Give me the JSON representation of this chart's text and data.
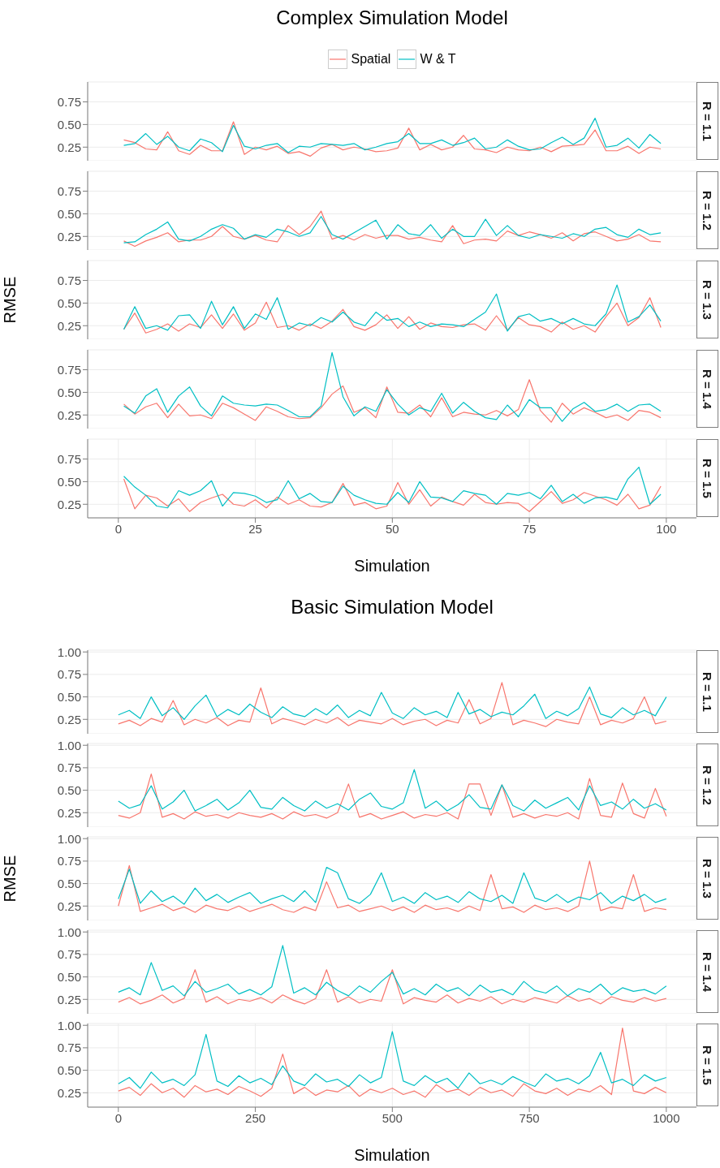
{
  "chart_data": [
    {
      "type": "line",
      "title": "Complex Simulation Model",
      "legend": "top",
      "annotations": [
        "R = 1.1"
      ],
      "grid": true,
      "tick_labels": "y",
      "x": [
        1,
        3,
        5,
        7,
        9,
        11,
        13,
        15,
        17,
        19,
        21,
        23,
        25,
        27,
        29,
        31,
        33,
        35,
        37,
        39,
        41,
        43,
        45,
        47,
        49,
        51,
        53,
        55,
        57,
        59,
        61,
        63,
        65,
        67,
        69,
        71,
        73,
        75,
        77,
        79,
        81,
        83,
        85,
        87,
        89,
        91,
        93,
        95,
        97,
        99
      ],
      "xlim": [
        -5.6,
        105.5
      ],
      "xticks": [
        0,
        25,
        50,
        75,
        100
      ],
      "ylim": [
        0.1,
        0.97
      ],
      "yticks": [
        {
          "value": 0.25,
          "label": "0.25"
        },
        {
          "value": 0.5,
          "label": "0.50"
        },
        {
          "value": 0.75,
          "label": "0.75"
        }
      ],
      "series": [
        {
          "name": "Spatial",
          "color": "#f8766d",
          "values": [
            0.33,
            0.3,
            0.23,
            0.22,
            0.42,
            0.21,
            0.17,
            0.27,
            0.21,
            0.21,
            0.53,
            0.17,
            0.25,
            0.22,
            0.26,
            0.18,
            0.2,
            0.15,
            0.24,
            0.28,
            0.22,
            0.25,
            0.23,
            0.2,
            0.21,
            0.24,
            0.46,
            0.22,
            0.28,
            0.22,
            0.25,
            0.38,
            0.23,
            0.22,
            0.19,
            0.25,
            0.22,
            0.21,
            0.25,
            0.2,
            0.26,
            0.27,
            0.28,
            0.44,
            0.21,
            0.21,
            0.26,
            0.18,
            0.25,
            0.23
          ]
        },
        {
          "name": "W & T",
          "color": "#00bfc4",
          "values": [
            0.27,
            0.29,
            0.4,
            0.28,
            0.37,
            0.25,
            0.21,
            0.34,
            0.3,
            0.2,
            0.49,
            0.26,
            0.23,
            0.27,
            0.29,
            0.19,
            0.26,
            0.25,
            0.29,
            0.28,
            0.27,
            0.29,
            0.22,
            0.25,
            0.29,
            0.31,
            0.4,
            0.29,
            0.29,
            0.33,
            0.27,
            0.3,
            0.35,
            0.23,
            0.25,
            0.33,
            0.26,
            0.22,
            0.23,
            0.3,
            0.36,
            0.28,
            0.35,
            0.57,
            0.25,
            0.27,
            0.35,
            0.24,
            0.39,
            0.29
          ]
        }
      ]
    },
    {
      "type": "line",
      "annotations": [
        "R = 1.2"
      ],
      "grid": true,
      "tick_labels": "y",
      "x": [
        1,
        3,
        5,
        7,
        9,
        11,
        13,
        15,
        17,
        19,
        21,
        23,
        25,
        27,
        29,
        31,
        33,
        35,
        37,
        39,
        41,
        43,
        45,
        47,
        49,
        51,
        53,
        55,
        57,
        59,
        61,
        63,
        65,
        67,
        69,
        71,
        73,
        75,
        77,
        79,
        81,
        83,
        85,
        87,
        89,
        91,
        93,
        95,
        97,
        99
      ],
      "xlim": [
        -5.6,
        105.5
      ],
      "xticks": [
        0,
        25,
        50,
        75,
        100
      ],
      "ylim": [
        0.1,
        0.97
      ],
      "yticks": [
        {
          "value": 0.25,
          "label": "0.25"
        },
        {
          "value": 0.5,
          "label": "0.50"
        },
        {
          "value": 0.75,
          "label": "0.75"
        }
      ],
      "series": [
        {
          "color": "#f8766d",
          "values": [
            0.2,
            0.14,
            0.2,
            0.24,
            0.29,
            0.19,
            0.21,
            0.21,
            0.25,
            0.36,
            0.25,
            0.22,
            0.26,
            0.21,
            0.19,
            0.37,
            0.27,
            0.36,
            0.53,
            0.22,
            0.26,
            0.21,
            0.27,
            0.23,
            0.26,
            0.26,
            0.22,
            0.24,
            0.21,
            0.19,
            0.37,
            0.17,
            0.21,
            0.22,
            0.2,
            0.31,
            0.26,
            0.3,
            0.27,
            0.23,
            0.29,
            0.2,
            0.28,
            0.3,
            0.25,
            0.2,
            0.22,
            0.27,
            0.2,
            0.19
          ]
        },
        {
          "color": "#00bfc4",
          "values": [
            0.18,
            0.19,
            0.27,
            0.33,
            0.41,
            0.22,
            0.2,
            0.25,
            0.33,
            0.38,
            0.34,
            0.22,
            0.27,
            0.24,
            0.33,
            0.3,
            0.25,
            0.29,
            0.47,
            0.27,
            0.22,
            0.29,
            0.36,
            0.43,
            0.22,
            0.38,
            0.28,
            0.26,
            0.38,
            0.23,
            0.33,
            0.25,
            0.25,
            0.44,
            0.26,
            0.37,
            0.26,
            0.23,
            0.27,
            0.25,
            0.23,
            0.28,
            0.25,
            0.33,
            0.35,
            0.27,
            0.24,
            0.33,
            0.27,
            0.29
          ]
        }
      ]
    },
    {
      "type": "line",
      "ylabel": "RMSE",
      "annotations": [
        "R = 1.3"
      ],
      "grid": true,
      "tick_labels": "y",
      "x": [
        1,
        3,
        5,
        7,
        9,
        11,
        13,
        15,
        17,
        19,
        21,
        23,
        25,
        27,
        29,
        31,
        33,
        35,
        37,
        39,
        41,
        43,
        45,
        47,
        49,
        51,
        53,
        55,
        57,
        59,
        61,
        63,
        65,
        67,
        69,
        71,
        73,
        75,
        77,
        79,
        81,
        83,
        85,
        87,
        89,
        91,
        93,
        95,
        97,
        99
      ],
      "xlim": [
        -5.6,
        105.5
      ],
      "xticks": [
        0,
        25,
        50,
        75,
        100
      ],
      "ylim": [
        0.1,
        0.97
      ],
      "yticks": [
        {
          "value": 0.25,
          "label": "0.25"
        },
        {
          "value": 0.5,
          "label": "0.50"
        },
        {
          "value": 0.75,
          "label": "0.75"
        }
      ],
      "series": [
        {
          "color": "#f8766d",
          "values": [
            0.21,
            0.39,
            0.17,
            0.21,
            0.27,
            0.19,
            0.27,
            0.23,
            0.37,
            0.22,
            0.38,
            0.2,
            0.28,
            0.51,
            0.23,
            0.25,
            0.2,
            0.27,
            0.22,
            0.3,
            0.43,
            0.24,
            0.2,
            0.26,
            0.37,
            0.22,
            0.35,
            0.21,
            0.28,
            0.24,
            0.23,
            0.26,
            0.27,
            0.2,
            0.36,
            0.2,
            0.34,
            0.26,
            0.24,
            0.18,
            0.29,
            0.21,
            0.25,
            0.18,
            0.35,
            0.5,
            0.25,
            0.34,
            0.56,
            0.23
          ]
        },
        {
          "color": "#00bfc4",
          "values": [
            0.21,
            0.46,
            0.22,
            0.25,
            0.2,
            0.36,
            0.37,
            0.22,
            0.52,
            0.26,
            0.46,
            0.22,
            0.38,
            0.32,
            0.56,
            0.21,
            0.28,
            0.25,
            0.34,
            0.29,
            0.4,
            0.29,
            0.25,
            0.4,
            0.31,
            0.33,
            0.24,
            0.29,
            0.24,
            0.27,
            0.26,
            0.24,
            0.32,
            0.4,
            0.6,
            0.19,
            0.35,
            0.38,
            0.3,
            0.33,
            0.27,
            0.33,
            0.27,
            0.25,
            0.38,
            0.7,
            0.29,
            0.35,
            0.48,
            0.3
          ]
        }
      ]
    },
    {
      "type": "line",
      "annotations": [
        "R = 1.4"
      ],
      "grid": true,
      "tick_labels": "y",
      "x": [
        1,
        3,
        5,
        7,
        9,
        11,
        13,
        15,
        17,
        19,
        21,
        23,
        25,
        27,
        29,
        31,
        33,
        35,
        37,
        39,
        41,
        43,
        45,
        47,
        49,
        51,
        53,
        55,
        57,
        59,
        61,
        63,
        65,
        67,
        69,
        71,
        73,
        75,
        77,
        79,
        81,
        83,
        85,
        87,
        89,
        91,
        93,
        95,
        97,
        99
      ],
      "xlim": [
        -5.6,
        105.5
      ],
      "xticks": [
        0,
        25,
        50,
        75,
        100
      ],
      "ylim": [
        0.1,
        0.97
      ],
      "yticks": [
        {
          "value": 0.25,
          "label": "0.25"
        },
        {
          "value": 0.5,
          "label": "0.50"
        },
        {
          "value": 0.75,
          "label": "0.75"
        }
      ],
      "series": [
        {
          "color": "#f8766d",
          "values": [
            0.37,
            0.26,
            0.34,
            0.38,
            0.22,
            0.37,
            0.24,
            0.25,
            0.21,
            0.38,
            0.33,
            0.26,
            0.19,
            0.34,
            0.29,
            0.23,
            0.21,
            0.22,
            0.33,
            0.48,
            0.57,
            0.28,
            0.33,
            0.22,
            0.56,
            0.28,
            0.27,
            0.36,
            0.23,
            0.44,
            0.23,
            0.28,
            0.26,
            0.25,
            0.3,
            0.24,
            0.31,
            0.64,
            0.3,
            0.17,
            0.38,
            0.26,
            0.33,
            0.28,
            0.22,
            0.25,
            0.19,
            0.3,
            0.28,
            0.22
          ]
        },
        {
          "color": "#00bfc4",
          "values": [
            0.35,
            0.27,
            0.46,
            0.54,
            0.28,
            0.46,
            0.56,
            0.35,
            0.24,
            0.46,
            0.38,
            0.36,
            0.35,
            0.37,
            0.36,
            0.3,
            0.23,
            0.23,
            0.35,
            0.94,
            0.45,
            0.24,
            0.34,
            0.29,
            0.53,
            0.37,
            0.25,
            0.33,
            0.29,
            0.49,
            0.27,
            0.39,
            0.29,
            0.22,
            0.2,
            0.36,
            0.23,
            0.42,
            0.33,
            0.33,
            0.18,
            0.32,
            0.39,
            0.29,
            0.31,
            0.37,
            0.29,
            0.36,
            0.37,
            0.29
          ]
        }
      ]
    },
    {
      "type": "line",
      "xlabel": "Simulation",
      "annotations": [
        "R = 1.5"
      ],
      "grid": true,
      "x": [
        1,
        3,
        5,
        7,
        9,
        11,
        13,
        15,
        17,
        19,
        21,
        23,
        25,
        27,
        29,
        31,
        33,
        35,
        37,
        39,
        41,
        43,
        45,
        47,
        49,
        51,
        53,
        55,
        57,
        59,
        61,
        63,
        65,
        67,
        69,
        71,
        73,
        75,
        77,
        79,
        81,
        83,
        85,
        87,
        89,
        91,
        93,
        95,
        97,
        99
      ],
      "xlim": [
        -5.6,
        105.5
      ],
      "xticks": [
        0,
        25,
        50,
        75,
        100
      ],
      "ylim": [
        0.1,
        0.97
      ],
      "yticks": [
        {
          "value": 0.25,
          "label": "0.25"
        },
        {
          "value": 0.5,
          "label": "0.50"
        },
        {
          "value": 0.75,
          "label": "0.75"
        }
      ],
      "series": [
        {
          "color": "#f8766d",
          "values": [
            0.53,
            0.2,
            0.35,
            0.32,
            0.23,
            0.31,
            0.17,
            0.27,
            0.32,
            0.36,
            0.25,
            0.23,
            0.3,
            0.21,
            0.33,
            0.25,
            0.3,
            0.23,
            0.22,
            0.27,
            0.48,
            0.24,
            0.27,
            0.2,
            0.23,
            0.49,
            0.25,
            0.41,
            0.23,
            0.33,
            0.28,
            0.24,
            0.36,
            0.27,
            0.25,
            0.27,
            0.26,
            0.17,
            0.28,
            0.39,
            0.26,
            0.3,
            0.38,
            0.34,
            0.3,
            0.24,
            0.36,
            0.2,
            0.24,
            0.45
          ]
        },
        {
          "color": "#00bfc4",
          "values": [
            0.56,
            0.44,
            0.35,
            0.23,
            0.21,
            0.4,
            0.35,
            0.4,
            0.51,
            0.23,
            0.38,
            0.37,
            0.34,
            0.27,
            0.3,
            0.51,
            0.31,
            0.37,
            0.28,
            0.27,
            0.45,
            0.35,
            0.3,
            0.26,
            0.25,
            0.38,
            0.27,
            0.5,
            0.33,
            0.32,
            0.28,
            0.4,
            0.37,
            0.35,
            0.25,
            0.37,
            0.35,
            0.38,
            0.31,
            0.46,
            0.28,
            0.36,
            0.26,
            0.32,
            0.33,
            0.3,
            0.53,
            0.66,
            0.25,
            0.36
          ]
        }
      ]
    },
    {
      "type": "line",
      "title": "Basic Simulation Model",
      "annotations": [
        "R = 1.1"
      ],
      "grid": true,
      "tick_labels": "y",
      "x": [
        0,
        20,
        40,
        60,
        80,
        100,
        120,
        140,
        160,
        180,
        200,
        220,
        240,
        260,
        280,
        300,
        320,
        340,
        360,
        380,
        400,
        420,
        440,
        460,
        480,
        500,
        520,
        540,
        560,
        580,
        600,
        620,
        640,
        660,
        680,
        700,
        720,
        740,
        760,
        780,
        800,
        820,
        840,
        860,
        880,
        900,
        920,
        940,
        960,
        980,
        1000
      ],
      "xlim": [
        -56,
        1055
      ],
      "xticks": [
        0,
        250,
        500,
        750,
        1000
      ],
      "ylim": [
        0.09,
        1.02
      ],
      "yticks": [
        {
          "value": 0.25,
          "label": "0.25"
        },
        {
          "value": 0.5,
          "label": "0.50"
        },
        {
          "value": 0.75,
          "label": "0.75"
        },
        {
          "value": 1,
          "label": "1.00"
        }
      ],
      "series": [
        {
          "color": "#f8766d",
          "values": [
            0.2,
            0.24,
            0.18,
            0.26,
            0.22,
            0.46,
            0.19,
            0.25,
            0.21,
            0.27,
            0.18,
            0.24,
            0.22,
            0.6,
            0.2,
            0.26,
            0.23,
            0.19,
            0.25,
            0.21,
            0.27,
            0.18,
            0.24,
            0.22,
            0.2,
            0.26,
            0.19,
            0.23,
            0.25,
            0.18,
            0.24,
            0.21,
            0.47,
            0.2,
            0.26,
            0.66,
            0.19,
            0.24,
            0.21,
            0.17,
            0.25,
            0.22,
            0.2,
            0.5,
            0.19,
            0.24,
            0.21,
            0.26,
            0.5,
            0.2,
            0.23
          ]
        },
        {
          "color": "#00bfc4",
          "values": [
            0.3,
            0.35,
            0.26,
            0.5,
            0.29,
            0.38,
            0.25,
            0.4,
            0.52,
            0.28,
            0.36,
            0.3,
            0.42,
            0.33,
            0.27,
            0.39,
            0.31,
            0.28,
            0.37,
            0.3,
            0.41,
            0.27,
            0.35,
            0.29,
            0.55,
            0.32,
            0.26,
            0.38,
            0.3,
            0.34,
            0.27,
            0.55,
            0.31,
            0.36,
            0.28,
            0.33,
            0.3,
            0.4,
            0.53,
            0.26,
            0.34,
            0.29,
            0.37,
            0.61,
            0.31,
            0.27,
            0.38,
            0.3,
            0.35,
            0.29,
            0.5
          ]
        }
      ]
    },
    {
      "type": "line",
      "annotations": [
        "R = 1.2"
      ],
      "grid": true,
      "tick_labels": "y",
      "x": [
        0,
        20,
        40,
        60,
        80,
        100,
        120,
        140,
        160,
        180,
        200,
        220,
        240,
        260,
        280,
        300,
        320,
        340,
        360,
        380,
        400,
        420,
        440,
        460,
        480,
        500,
        520,
        540,
        560,
        580,
        600,
        620,
        640,
        660,
        680,
        700,
        720,
        740,
        760,
        780,
        800,
        820,
        840,
        860,
        880,
        900,
        920,
        940,
        960,
        980,
        1000
      ],
      "xlim": [
        -56,
        1055
      ],
      "xticks": [
        0,
        250,
        500,
        750,
        1000
      ],
      "ylim": [
        0.09,
        1.02
      ],
      "yticks": [
        {
          "value": 0.25,
          "label": "0.25"
        },
        {
          "value": 0.5,
          "label": "0.50"
        },
        {
          "value": 0.75,
          "label": "0.75"
        },
        {
          "value": 1,
          "label": "1.00"
        }
      ],
      "series": [
        {
          "color": "#f8766d",
          "values": [
            0.22,
            0.19,
            0.25,
            0.68,
            0.2,
            0.24,
            0.18,
            0.26,
            0.21,
            0.23,
            0.19,
            0.25,
            0.22,
            0.2,
            0.24,
            0.18,
            0.26,
            0.21,
            0.23,
            0.19,
            0.25,
            0.57,
            0.2,
            0.24,
            0.18,
            0.22,
            0.26,
            0.19,
            0.23,
            0.21,
            0.25,
            0.18,
            0.57,
            0.57,
            0.22,
            0.56,
            0.2,
            0.24,
            0.19,
            0.23,
            0.21,
            0.25,
            0.18,
            0.63,
            0.22,
            0.2,
            0.58,
            0.24,
            0.19,
            0.52,
            0.21
          ]
        },
        {
          "color": "#00bfc4",
          "values": [
            0.38,
            0.3,
            0.34,
            0.55,
            0.29,
            0.37,
            0.5,
            0.27,
            0.33,
            0.4,
            0.28,
            0.36,
            0.5,
            0.31,
            0.29,
            0.42,
            0.33,
            0.27,
            0.38,
            0.3,
            0.35,
            0.28,
            0.4,
            0.47,
            0.32,
            0.29,
            0.36,
            0.73,
            0.3,
            0.38,
            0.27,
            0.34,
            0.45,
            0.31,
            0.29,
            0.56,
            0.33,
            0.27,
            0.39,
            0.3,
            0.36,
            0.42,
            0.28,
            0.55,
            0.33,
            0.37,
            0.29,
            0.4,
            0.3,
            0.35,
            0.28
          ]
        }
      ]
    },
    {
      "type": "line",
      "ylabel": "RMSE",
      "annotations": [
        "R = 1.3"
      ],
      "grid": true,
      "tick_labels": "y",
      "x": [
        0,
        20,
        40,
        60,
        80,
        100,
        120,
        140,
        160,
        180,
        200,
        220,
        240,
        260,
        280,
        300,
        320,
        340,
        360,
        380,
        400,
        420,
        440,
        460,
        480,
        500,
        520,
        540,
        560,
        580,
        600,
        620,
        640,
        660,
        680,
        700,
        720,
        740,
        760,
        780,
        800,
        820,
        840,
        860,
        880,
        900,
        920,
        940,
        960,
        980,
        1000
      ],
      "xlim": [
        -56,
        1055
      ],
      "xticks": [
        0,
        250,
        500,
        750,
        1000
      ],
      "ylim": [
        0.09,
        1.02
      ],
      "yticks": [
        {
          "value": 0.25,
          "label": "0.25"
        },
        {
          "value": 0.5,
          "label": "0.50"
        },
        {
          "value": 0.75,
          "label": "0.75"
        },
        {
          "value": 1,
          "label": "1.00"
        }
      ],
      "series": [
        {
          "color": "#f8766d",
          "values": [
            0.25,
            0.7,
            0.19,
            0.23,
            0.27,
            0.2,
            0.24,
            0.18,
            0.26,
            0.22,
            0.2,
            0.25,
            0.19,
            0.23,
            0.27,
            0.21,
            0.18,
            0.24,
            0.2,
            0.52,
            0.23,
            0.26,
            0.19,
            0.22,
            0.25,
            0.2,
            0.24,
            0.18,
            0.26,
            0.21,
            0.23,
            0.19,
            0.25,
            0.2,
            0.6,
            0.22,
            0.24,
            0.18,
            0.26,
            0.21,
            0.23,
            0.19,
            0.25,
            0.75,
            0.2,
            0.24,
            0.22,
            0.6,
            0.19,
            0.23,
            0.21
          ]
        },
        {
          "color": "#00bfc4",
          "values": [
            0.33,
            0.66,
            0.28,
            0.42,
            0.3,
            0.36,
            0.27,
            0.45,
            0.31,
            0.38,
            0.29,
            0.35,
            0.4,
            0.28,
            0.33,
            0.37,
            0.3,
            0.42,
            0.29,
            0.68,
            0.62,
            0.33,
            0.28,
            0.38,
            0.62,
            0.3,
            0.35,
            0.28,
            0.4,
            0.32,
            0.36,
            0.29,
            0.41,
            0.33,
            0.3,
            0.37,
            0.28,
            0.62,
            0.34,
            0.3,
            0.38,
            0.29,
            0.35,
            0.32,
            0.4,
            0.28,
            0.36,
            0.31,
            0.38,
            0.29,
            0.33
          ]
        }
      ]
    },
    {
      "type": "line",
      "annotations": [
        "R = 1.4"
      ],
      "grid": true,
      "tick_labels": "y",
      "x": [
        0,
        20,
        40,
        60,
        80,
        100,
        120,
        140,
        160,
        180,
        200,
        220,
        240,
        260,
        280,
        300,
        320,
        340,
        360,
        380,
        400,
        420,
        440,
        460,
        480,
        500,
        520,
        540,
        560,
        580,
        600,
        620,
        640,
        660,
        680,
        700,
        720,
        740,
        760,
        780,
        800,
        820,
        840,
        860,
        880,
        900,
        920,
        940,
        960,
        980,
        1000
      ],
      "xlim": [
        -56,
        1055
      ],
      "xticks": [
        0,
        250,
        500,
        750,
        1000
      ],
      "ylim": [
        0.09,
        1.02
      ],
      "yticks": [
        {
          "value": 0.25,
          "label": "0.25"
        },
        {
          "value": 0.5,
          "label": "0.50"
        },
        {
          "value": 0.75,
          "label": "0.75"
        },
        {
          "value": 1,
          "label": "1.00"
        }
      ],
      "series": [
        {
          "color": "#f8766d",
          "values": [
            0.22,
            0.27,
            0.2,
            0.24,
            0.3,
            0.21,
            0.26,
            0.58,
            0.22,
            0.28,
            0.2,
            0.25,
            0.23,
            0.27,
            0.21,
            0.3,
            0.24,
            0.2,
            0.26,
            0.58,
            0.22,
            0.28,
            0.21,
            0.25,
            0.23,
            0.58,
            0.2,
            0.27,
            0.24,
            0.22,
            0.3,
            0.21,
            0.26,
            0.23,
            0.28,
            0.2,
            0.25,
            0.22,
            0.27,
            0.24,
            0.21,
            0.29,
            0.23,
            0.26,
            0.2,
            0.28,
            0.24,
            0.22,
            0.27,
            0.23,
            0.26
          ]
        },
        {
          "color": "#00bfc4",
          "values": [
            0.33,
            0.38,
            0.3,
            0.66,
            0.35,
            0.4,
            0.29,
            0.45,
            0.33,
            0.37,
            0.42,
            0.31,
            0.36,
            0.3,
            0.39,
            0.85,
            0.32,
            0.38,
            0.3,
            0.44,
            0.35,
            0.29,
            0.4,
            0.33,
            0.45,
            0.55,
            0.31,
            0.37,
            0.3,
            0.42,
            0.34,
            0.38,
            0.29,
            0.41,
            0.33,
            0.36,
            0.3,
            0.45,
            0.35,
            0.32,
            0.4,
            0.29,
            0.37,
            0.33,
            0.42,
            0.3,
            0.38,
            0.34,
            0.36,
            0.31,
            0.4
          ]
        }
      ]
    },
    {
      "type": "line",
      "xlabel": "Simulation",
      "annotations": [
        "R = 1.5"
      ],
      "grid": true,
      "x": [
        0,
        20,
        40,
        60,
        80,
        100,
        120,
        140,
        160,
        180,
        200,
        220,
        240,
        260,
        280,
        300,
        320,
        340,
        360,
        380,
        400,
        420,
        440,
        460,
        480,
        500,
        520,
        540,
        560,
        580,
        600,
        620,
        640,
        660,
        680,
        700,
        720,
        740,
        760,
        780,
        800,
        820,
        840,
        860,
        880,
        900,
        920,
        940,
        960,
        980,
        1000
      ],
      "xlim": [
        -56,
        1055
      ],
      "xticks": [
        0,
        250,
        500,
        750,
        1000
      ],
      "ylim": [
        0.09,
        1.02
      ],
      "yticks": [
        {
          "value": 0.25,
          "label": "0.25"
        },
        {
          "value": 0.5,
          "label": "0.50"
        },
        {
          "value": 0.75,
          "label": "0.75"
        },
        {
          "value": 1,
          "label": "1.00"
        }
      ],
      "series": [
        {
          "color": "#f8766d",
          "values": [
            0.27,
            0.31,
            0.22,
            0.35,
            0.25,
            0.3,
            0.2,
            0.33,
            0.26,
            0.29,
            0.23,
            0.32,
            0.27,
            0.21,
            0.3,
            0.68,
            0.24,
            0.31,
            0.22,
            0.28,
            0.26,
            0.33,
            0.21,
            0.29,
            0.25,
            0.3,
            0.23,
            0.27,
            0.2,
            0.34,
            0.26,
            0.29,
            0.22,
            0.31,
            0.25,
            0.28,
            0.21,
            0.35,
            0.27,
            0.24,
            0.3,
            0.22,
            0.29,
            0.26,
            0.33,
            0.23,
            0.97,
            0.27,
            0.24,
            0.31,
            0.25
          ]
        },
        {
          "color": "#00bfc4",
          "values": [
            0.35,
            0.42,
            0.3,
            0.48,
            0.36,
            0.4,
            0.33,
            0.45,
            0.9,
            0.38,
            0.32,
            0.44,
            0.36,
            0.41,
            0.34,
            0.55,
            0.38,
            0.33,
            0.46,
            0.37,
            0.4,
            0.32,
            0.45,
            0.36,
            0.42,
            0.93,
            0.38,
            0.33,
            0.44,
            0.36,
            0.41,
            0.3,
            0.47,
            0.35,
            0.39,
            0.34,
            0.43,
            0.37,
            0.32,
            0.46,
            0.38,
            0.41,
            0.35,
            0.44,
            0.7,
            0.36,
            0.4,
            0.33,
            0.45,
            0.38,
            0.42
          ]
        }
      ]
    }
  ]
}
